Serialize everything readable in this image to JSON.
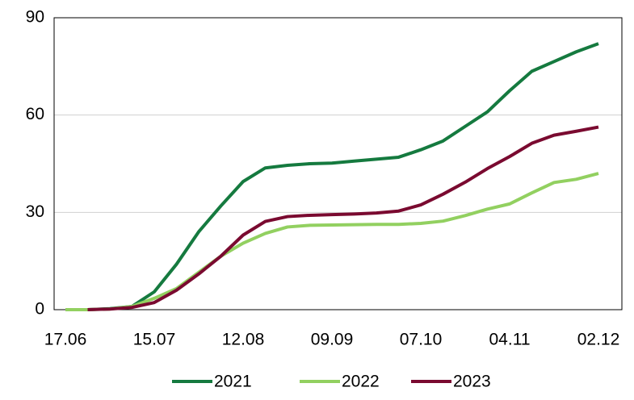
{
  "chart_data": {
    "type": "line",
    "categories": [
      "17.06",
      null,
      null,
      null,
      "15.07",
      null,
      null,
      null,
      "12.08",
      null,
      null,
      null,
      "09.09",
      null,
      null,
      null,
      "07.10",
      null,
      null,
      null,
      "04.11",
      null,
      null,
      null,
      "02.12"
    ],
    "series": [
      {
        "name": "2021",
        "color": "#157a3f",
        "values": [
          null,
          0,
          0.3,
          1,
          5.5,
          14,
          24,
          32,
          39.5,
          43.7,
          44.5,
          45,
          45.2,
          45.8,
          46.4,
          47,
          49.3,
          52,
          56.5,
          61,
          67.5,
          73.5,
          76.5,
          79.5,
          82
        ]
      },
      {
        "name": "2022",
        "color": "#92d060",
        "values": [
          0,
          0,
          0.2,
          1,
          3.5,
          6.5,
          11.5,
          16.5,
          20.5,
          23.5,
          25.5,
          26,
          26.1,
          26.2,
          26.3,
          26.3,
          26.6,
          27.3,
          29,
          31,
          32.6,
          36,
          39.2,
          40.2,
          42
        ]
      },
      {
        "name": "2023",
        "color": "#7a0a30",
        "values": [
          null,
          0,
          0.2,
          0.7,
          2.2,
          6,
          11,
          16.5,
          23,
          27.2,
          28.7,
          29.1,
          29.3,
          29.5,
          29.8,
          30.4,
          32.3,
          35.6,
          39.3,
          43.5,
          47.2,
          51.3,
          53.8,
          55,
          56.3
        ]
      }
    ],
    "ylim": [
      0,
      90
    ],
    "yticks": [
      0,
      30,
      60,
      90
    ],
    "grid": true,
    "legend": "bottom"
  }
}
